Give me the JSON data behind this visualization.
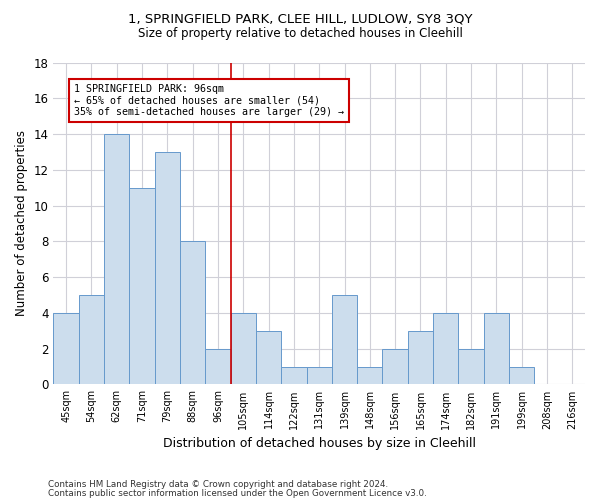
{
  "title1": "1, SPRINGFIELD PARK, CLEE HILL, LUDLOW, SY8 3QY",
  "title2": "Size of property relative to detached houses in Cleehill",
  "xlabel": "Distribution of detached houses by size in Cleehill",
  "ylabel": "Number of detached properties",
  "categories": [
    "45sqm",
    "54sqm",
    "62sqm",
    "71sqm",
    "79sqm",
    "88sqm",
    "96sqm",
    "105sqm",
    "114sqm",
    "122sqm",
    "131sqm",
    "139sqm",
    "148sqm",
    "156sqm",
    "165sqm",
    "174sqm",
    "182sqm",
    "191sqm",
    "199sqm",
    "208sqm",
    "216sqm"
  ],
  "values": [
    4,
    5,
    14,
    11,
    13,
    8,
    2,
    4,
    3,
    1,
    1,
    5,
    1,
    2,
    3,
    4,
    2,
    4,
    1,
    0,
    0
  ],
  "bar_color": "#ccdded",
  "bar_edge_color": "#6699cc",
  "vline_x": 6.5,
  "vline_color": "#cc0000",
  "annotation_text": "1 SPRINGFIELD PARK: 96sqm\n← 65% of detached houses are smaller (54)\n35% of semi-detached houses are larger (29) →",
  "annotation_box_color": "#ffffff",
  "annotation_box_edge": "#cc0000",
  "ylim": [
    0,
    18
  ],
  "yticks": [
    0,
    2,
    4,
    6,
    8,
    10,
    12,
    14,
    16,
    18
  ],
  "footer1": "Contains HM Land Registry data © Crown copyright and database right 2024.",
  "footer2": "Contains public sector information licensed under the Open Government Licence v3.0.",
  "bg_color": "#ffffff",
  "plot_bg_color": "#ffffff",
  "grid_color": "#d0d0d8"
}
